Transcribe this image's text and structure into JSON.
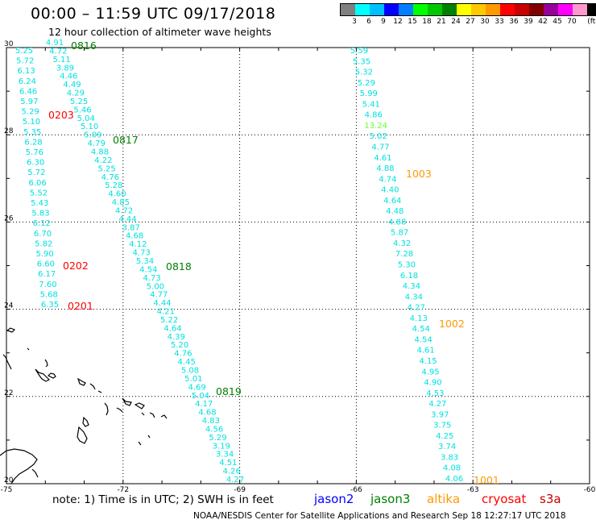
{
  "header": {
    "title": "00:00 – 11:59 UTC 09/17/2018",
    "subtitle": "12 hour collection of altimeter wave heights"
  },
  "legend": {
    "unit": "(ft)",
    "colors": [
      "#808080",
      "#00ffff",
      "#00bfff",
      "#0000ff",
      "#0080ff",
      "#00ff00",
      "#00c800",
      "#008000",
      "#ffff00",
      "#ffc800",
      "#ff9900",
      "#ff0000",
      "#c80000",
      "#800000",
      "#990099",
      "#ff00ff",
      "#ff99cc",
      "#000000"
    ],
    "labels": [
      "3",
      "6",
      "9",
      "12",
      "15",
      "18",
      "21",
      "24",
      "27",
      "30",
      "33",
      "36",
      "39",
      "42",
      "45",
      "70"
    ]
  },
  "axes": {
    "lat_labels": [
      "30",
      "28",
      "26",
      "24",
      "22",
      "20"
    ],
    "lon_labels": [
      "-75",
      "-72",
      "-69",
      "-66",
      "-63",
      "-60"
    ]
  },
  "tracks": [
    {
      "color": "#00e0e0",
      "values": [
        "4.91",
        "4.72",
        "5.11",
        "3.89",
        "4.46",
        "4.49",
        "4.29",
        "5.25",
        "5.46",
        "5.04",
        "5.10",
        "5.09",
        "4.79",
        "4.88",
        "4.22",
        "5.25",
        "4.76",
        "5.28",
        "4.60",
        "4.85",
        "4.72",
        "4.44",
        "3.87",
        "4.68",
        "4.12",
        "4.73",
        "5.34",
        "4.54",
        "4.73",
        "5.00",
        "4.77",
        "4.44",
        "4.21",
        "5.22",
        "4.64",
        "4.39",
        "5.20",
        "4.76",
        "4.45",
        "5.08",
        "5.01",
        "4.69",
        "5.04",
        "4.17",
        "4.68",
        "4.83",
        "4.56",
        "5.29",
        "3.19",
        "3.34",
        "4.51",
        "4.26",
        "4.27"
      ]
    },
    {
      "color": "#00e0e0",
      "values": [
        "5.25",
        "5.72",
        "6.13",
        "6.24",
        "6.46",
        "5.97",
        "5.29",
        "5.10",
        "5.35",
        "6.28",
        "5.76",
        "6.30",
        "5.72",
        "6.06",
        "5.52",
        "5.43",
        "5.83",
        "6.12",
        "6.70",
        "5.82",
        "5.90",
        "6.60",
        "6.17",
        "7.60",
        "5.68",
        "6.35"
      ]
    },
    {
      "color": "#00e0e0",
      "values": [
        "5.59",
        "5.35",
        "5.32",
        "5.29",
        "5.99",
        "5.41",
        "4.86",
        "13.24",
        "5.02",
        "4.77",
        "4.61",
        "4.88",
        "4.74",
        "4.40",
        "4.64",
        "4.48",
        "4.88",
        "5.87",
        "4.32",
        "7.28",
        "5.30",
        "6.18",
        "4.34",
        "4.34",
        "4.27",
        "4.13",
        "4.54",
        "4.54",
        "4.61",
        "4.15",
        "4.95",
        "4.90",
        "4.53",
        "4.27",
        "3.97",
        "3.75",
        "4.25",
        "3.74",
        "3.83",
        "4.08",
        "4.06"
      ]
    }
  ],
  "highlight_value_color": "#66ff33",
  "time_labels": [
    {
      "text": "0816",
      "color": "#008000"
    },
    {
      "text": "0817",
      "color": "#008000"
    },
    {
      "text": "0818",
      "color": "#008000"
    },
    {
      "text": "0819",
      "color": "#008000"
    },
    {
      "text": "0203",
      "color": "#ff0000"
    },
    {
      "text": "0202",
      "color": "#ff0000"
    },
    {
      "text": "0201",
      "color": "#ff0000"
    },
    {
      "text": "1003",
      "color": "#ff9900"
    },
    {
      "text": "1002",
      "color": "#ff9900"
    },
    {
      "text": "1001",
      "color": "#ff9900"
    }
  ],
  "footer": {
    "note": "note:  1) Time is in UTC;  2) SWH is in feet",
    "satellites": [
      {
        "name": "jason2",
        "color": "#0000ff"
      },
      {
        "name": "jason3",
        "color": "#008000"
      },
      {
        "name": "altika",
        "color": "#ff9900"
      },
      {
        "name": "cryosat",
        "color": "#ff0000"
      },
      {
        "name": "s3a",
        "color": "#cc0000"
      }
    ],
    "credit": "NOAA/NESDIS Center for Satellite Applications and Research    Sep 18 12:27:17 UTC 2018"
  }
}
